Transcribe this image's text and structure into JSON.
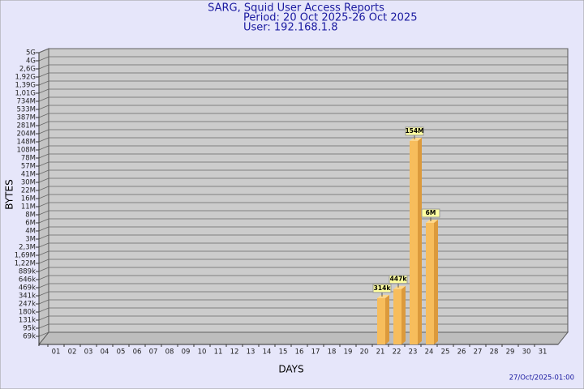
{
  "chart_data": {
    "type": "bar3d",
    "title": "SARG, Squid User Access Reports",
    "subtitle": [
      "Period: 20 Oct 2025-26 Oct 2025",
      "User: 192.168.1.8"
    ],
    "x_label": "DAYS",
    "y_label": "BYTES",
    "footer": "27/Oct/2025-01:00",
    "categories": [
      "01",
      "02",
      "03",
      "04",
      "05",
      "06",
      "07",
      "08",
      "09",
      "10",
      "11",
      "12",
      "13",
      "14",
      "15",
      "16",
      "17",
      "18",
      "19",
      "20",
      "21",
      "22",
      "23",
      "24",
      "25",
      "26",
      "27",
      "28",
      "29",
      "30",
      "31"
    ],
    "values": [
      null,
      null,
      null,
      null,
      null,
      null,
      null,
      null,
      null,
      null,
      null,
      null,
      null,
      null,
      null,
      null,
      null,
      null,
      null,
      null,
      314000,
      447000,
      154000000,
      6000000,
      null,
      null,
      null,
      null,
      null,
      null,
      null
    ],
    "value_labels": [
      null,
      null,
      null,
      null,
      null,
      null,
      null,
      null,
      null,
      null,
      null,
      null,
      null,
      null,
      null,
      null,
      null,
      null,
      null,
      null,
      "314k",
      "447k",
      "154M",
      "6M",
      null,
      null,
      null,
      null,
      null,
      null,
      null
    ],
    "color": "#f7bd5c",
    "ylim": [
      0,
      5000000000
    ],
    "yticks": [
      {
        "value": 69000,
        "label": "69k"
      },
      {
        "value": 95000,
        "label": "95k"
      },
      {
        "value": 131000,
        "label": "131k"
      },
      {
        "value": 180000,
        "label": "180k"
      },
      {
        "value": 247000,
        "label": "247k"
      },
      {
        "value": 341000,
        "label": "341k"
      },
      {
        "value": 469000,
        "label": "469k"
      },
      {
        "value": 646000,
        "label": "646k"
      },
      {
        "value": 889000,
        "label": "889k"
      },
      {
        "value": 1220000,
        "label": "1,22M"
      },
      {
        "value": 1690000,
        "label": "1,69M"
      },
      {
        "value": 2300000,
        "label": "2,3M"
      },
      {
        "value": 3000000,
        "label": "3M"
      },
      {
        "value": 4000000,
        "label": "4M"
      },
      {
        "value": 6000000,
        "label": "6M"
      },
      {
        "value": 8000000,
        "label": "8M"
      },
      {
        "value": 11000000,
        "label": "11M"
      },
      {
        "value": 16000000,
        "label": "16M"
      },
      {
        "value": 22000000,
        "label": "22M"
      },
      {
        "value": 30000000,
        "label": "30M"
      },
      {
        "value": 41000000,
        "label": "41M"
      },
      {
        "value": 57000000,
        "label": "57M"
      },
      {
        "value": 78000000,
        "label": "78M"
      },
      {
        "value": 108000000,
        "label": "108M"
      },
      {
        "value": 148000000,
        "label": "148M"
      },
      {
        "value": 204000000,
        "label": "204M"
      },
      {
        "value": 281000000,
        "label": "281M"
      },
      {
        "value": 387000000,
        "label": "387M"
      },
      {
        "value": 533000000,
        "label": "533M"
      },
      {
        "value": 734000000,
        "label": "734M"
      },
      {
        "value": 1010000000,
        "label": "1,01G"
      },
      {
        "value": 1390000000,
        "label": "1,39G"
      },
      {
        "value": 1920000000,
        "label": "1,92G"
      },
      {
        "value": 2600000000,
        "label": "2,6G"
      },
      {
        "value": 4000000000,
        "label": "4G"
      },
      {
        "value": 5000000000,
        "label": "5G"
      }
    ],
    "grid": true
  }
}
